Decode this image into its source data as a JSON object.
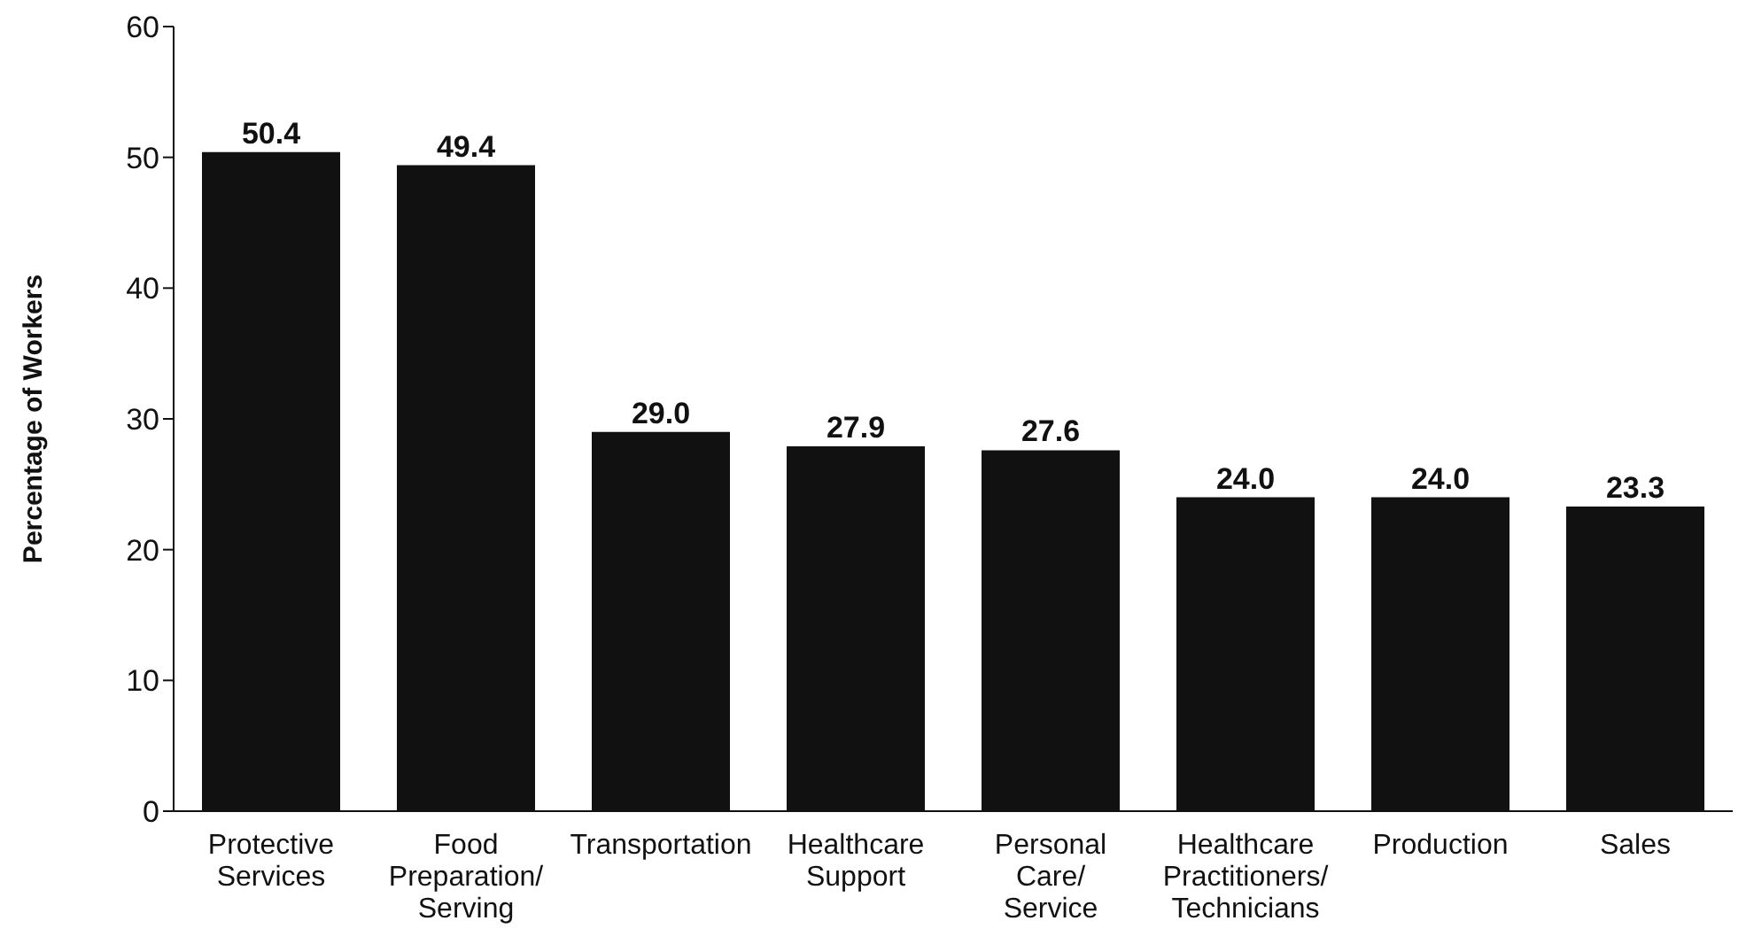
{
  "chart_data": {
    "type": "bar",
    "ylabel": "Percentage of Workers",
    "categories": [
      "Protective Services",
      "Food Preparation/Serving",
      "Transportation",
      "Healthcare Support",
      "Personal Care/Service",
      "Healthcare Practitioners/Technicians",
      "Production",
      "Sales"
    ],
    "values": [
      50.4,
      49.4,
      29.0,
      27.9,
      27.6,
      24.0,
      24.0,
      23.3
    ],
    "color": "#111111",
    "ylim": [
      0,
      60
    ],
    "yticks": [
      0,
      10,
      20,
      30,
      40,
      50,
      60
    ],
    "grid": false,
    "value_labels": [
      "50.4",
      "49.4",
      "29.0",
      "27.9",
      "27.6",
      "24.0",
      "24.0",
      "23.3"
    ]
  }
}
